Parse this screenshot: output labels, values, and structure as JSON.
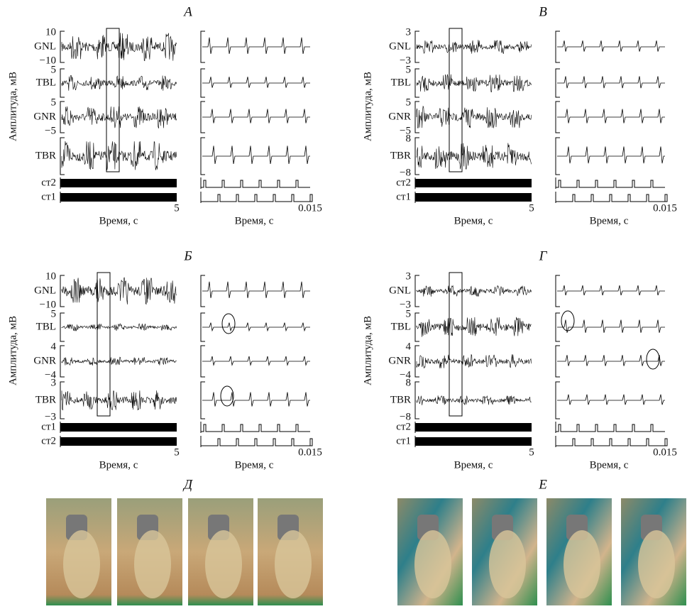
{
  "panels": [
    {
      "label": "А",
      "y_axis_label": "Амплитуда, мВ",
      "x_axis_label": "Время, с",
      "x_end": "5",
      "zoom_x_end": "0.015",
      "channels": [
        {
          "name": "GNL",
          "top": "10",
          "bottom": "−10"
        },
        {
          "name": "TBL",
          "top": "5"
        },
        {
          "name": "GNR",
          "top": "5",
          "bottom": "−5"
        },
        {
          "name": "TBR"
        }
      ],
      "stim": [
        "ст2",
        "ст1"
      ]
    },
    {
      "label": "В",
      "y_axis_label": "Амплитуда, мВ",
      "x_axis_label": "Время, с",
      "x_end": "5",
      "zoom_x_end": "0.015",
      "channels": [
        {
          "name": "GNL",
          "top": "3",
          "bottom": "−3"
        },
        {
          "name": "TBL",
          "top": "5"
        },
        {
          "name": "GNR",
          "top": "5",
          "bottom": "−5"
        },
        {
          "name": "TBR",
          "top": "8",
          "bottom": "−8"
        }
      ],
      "stim": [
        "ст2",
        "ст1"
      ]
    },
    {
      "label": "Б",
      "y_axis_label": "Амплитуда, мВ",
      "x_axis_label": "Время, с",
      "x_end": "5",
      "zoom_x_end": "0.015",
      "channels": [
        {
          "name": "GNL",
          "top": "10",
          "bottom": "−10"
        },
        {
          "name": "TBL",
          "top": "5"
        },
        {
          "name": "GNR",
          "top": "4",
          "bottom": "−4"
        },
        {
          "name": "TBR",
          "top": "3",
          "bottom": "−3"
        }
      ],
      "stim": [
        "ст1",
        "ст2"
      ]
    },
    {
      "label": "Г",
      "y_axis_label": "Амплитуда, мВ",
      "x_axis_label": "Время, с",
      "x_end": "5",
      "zoom_x_end": "0.015",
      "channels": [
        {
          "name": "GNL",
          "top": "3",
          "bottom": "−3"
        },
        {
          "name": "TBL",
          "top": "5"
        },
        {
          "name": "GNR",
          "top": "4",
          "bottom": "−4"
        },
        {
          "name": "TBR",
          "top": "8",
          "bottom": "−8"
        }
      ],
      "stim": [
        "ст2",
        "ст1"
      ]
    }
  ],
  "photo_groups": [
    {
      "label": "Д"
    },
    {
      "label": "Е"
    }
  ]
}
